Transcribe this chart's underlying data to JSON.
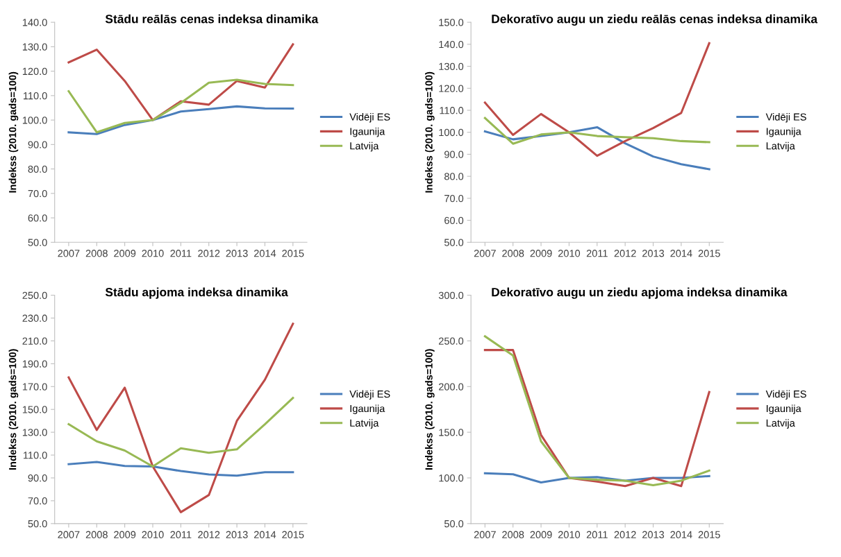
{
  "chart_data": [
    {
      "type": "line",
      "title": "Stādu reālās cenas indeksa dinamika",
      "ylabel": "Indekss (2010. gads=100)",
      "categories": [
        "2007",
        "2008",
        "2009",
        "2010",
        "2011",
        "2012",
        "2013",
        "2014",
        "2015"
      ],
      "legend": "right",
      "grid": false,
      "ylim": [
        50,
        140
      ],
      "yticks": [
        {
          "value": 50,
          "label": "50.0"
        },
        {
          "value": 60,
          "label": "60.0"
        },
        {
          "value": 70,
          "label": "70.0"
        },
        {
          "value": 80,
          "label": "80.0"
        },
        {
          "value": 90,
          "label": "90.0"
        },
        {
          "value": 100,
          "label": "100.0"
        },
        {
          "value": 110,
          "label": "110.0"
        },
        {
          "value": 120,
          "label": "120.0"
        },
        {
          "value": 130,
          "label": "130.0"
        },
        {
          "value": 140,
          "label": "140.0"
        }
      ],
      "series": [
        {
          "name": "Vidēji ES",
          "color": "#4a7ebb",
          "values": [
            95,
            94.3,
            98,
            100,
            103.5,
            104.5,
            105.6,
            104.8,
            104.7
          ]
        },
        {
          "name": "Igaunija",
          "color": "#be4b48",
          "values": [
            123.6,
            128.8,
            116,
            100,
            107.7,
            106.3,
            116,
            113.3,
            131
          ]
        },
        {
          "name": "Latvija",
          "color": "#98b954",
          "values": [
            111.8,
            95,
            98.8,
            100,
            107,
            115.3,
            116.5,
            114.8,
            114.3
          ]
        }
      ]
    },
    {
      "type": "line",
      "title": "Dekoratīvo augu un ziedu reālās cenas indeksa dinamika",
      "ylabel": "Indekss (2010. gads=100)",
      "categories": [
        "2007",
        "2008",
        "2009",
        "2010",
        "2011",
        "2012",
        "2013",
        "2014",
        "2015"
      ],
      "legend": "right",
      "grid": false,
      "ylim": [
        50,
        150
      ],
      "yticks": [
        {
          "value": 50,
          "label": "50.0"
        },
        {
          "value": 60,
          "label": "60.0"
        },
        {
          "value": 70,
          "label": "70.0"
        },
        {
          "value": 80,
          "label": "80.0"
        },
        {
          "value": 90,
          "label": "90.0"
        },
        {
          "value": 100,
          "label": "100.0"
        },
        {
          "value": 110,
          "label": "110.0"
        },
        {
          "value": 120,
          "label": "120.0"
        },
        {
          "value": 130,
          "label": "130.0"
        },
        {
          "value": 140,
          "label": "140.0"
        },
        {
          "value": 150,
          "label": "150.0"
        }
      ],
      "series": [
        {
          "name": "Vidēji ES",
          "color": "#4a7ebb",
          "values": [
            100.4,
            96.8,
            98.3,
            100,
            102.3,
            95,
            89,
            85.5,
            83.2
          ]
        },
        {
          "name": "Igaunija",
          "color": "#be4b48",
          "values": [
            113.5,
            98.8,
            108.3,
            100,
            89.3,
            96,
            101.9,
            108.8,
            140.5
          ]
        },
        {
          "name": "Latvija",
          "color": "#98b954",
          "values": [
            106.5,
            94.8,
            99,
            100,
            98.3,
            97.8,
            97.3,
            96,
            95.5
          ]
        }
      ]
    },
    {
      "type": "line",
      "title": "Stādu apjoma indeksa dinamika",
      "ylabel": "Indekss (2010. gads=100)",
      "categories": [
        "2007",
        "2008",
        "2009",
        "2010",
        "2011",
        "2012",
        "2013",
        "2014",
        "2015"
      ],
      "legend": "right",
      "grid": false,
      "ylim": [
        50,
        250
      ],
      "yticks": [
        {
          "value": 50,
          "label": "50.0"
        },
        {
          "value": 70,
          "label": "70.0"
        },
        {
          "value": 90,
          "label": "90.0"
        },
        {
          "value": 110,
          "label": "110.0"
        },
        {
          "value": 130,
          "label": "130.0"
        },
        {
          "value": 150,
          "label": "150.0"
        },
        {
          "value": 170,
          "label": "170.0"
        },
        {
          "value": 190,
          "label": "190.0"
        },
        {
          "value": 210,
          "label": "210.0"
        },
        {
          "value": 230,
          "label": "230.0"
        },
        {
          "value": 250,
          "label": "250.0"
        }
      ],
      "series": [
        {
          "name": "Vidēji ES",
          "color": "#4a7ebb",
          "values": [
            102,
            104,
            100.5,
            100,
            96,
            93,
            92,
            95,
            95
          ]
        },
        {
          "name": "Igaunija",
          "color": "#be4b48",
          "values": [
            178,
            132,
            169,
            100,
            60,
            75,
            140,
            176,
            225
          ]
        },
        {
          "name": "Latvija",
          "color": "#98b954",
          "values": [
            137,
            122,
            114,
            100,
            116,
            112,
            115,
            137,
            160
          ]
        }
      ]
    },
    {
      "type": "line",
      "title": "Dekoratīvo augu un ziedu apjoma indeksa dinamika",
      "ylabel": "Indekss (2010. gads=100)",
      "categories": [
        "2007",
        "2008",
        "2009",
        "2010",
        "2011",
        "2012",
        "2013",
        "2014",
        "2015"
      ],
      "legend": "right",
      "grid": false,
      "ylim": [
        50,
        300
      ],
      "yticks": [
        {
          "value": 50,
          "label": "50.0"
        },
        {
          "value": 100,
          "label": "100.0"
        },
        {
          "value": 150,
          "label": "150.0"
        },
        {
          "value": 200,
          "label": "200.0"
        },
        {
          "value": 250,
          "label": "250.0"
        },
        {
          "value": 300,
          "label": "300.0"
        }
      ],
      "series": [
        {
          "name": "Vidēji ES",
          "color": "#4a7ebb",
          "values": [
            105,
            104,
            95,
            100,
            101,
            97,
            100,
            100,
            102
          ]
        },
        {
          "name": "Igaunija",
          "color": "#be4b48",
          "values": [
            240,
            240,
            147,
            100,
            96,
            91,
            100,
            91,
            194
          ]
        },
        {
          "name": "Latvija",
          "color": "#98b954",
          "values": [
            255,
            234,
            140,
            100,
            98,
            97,
            92,
            97,
            108
          ]
        }
      ]
    }
  ]
}
